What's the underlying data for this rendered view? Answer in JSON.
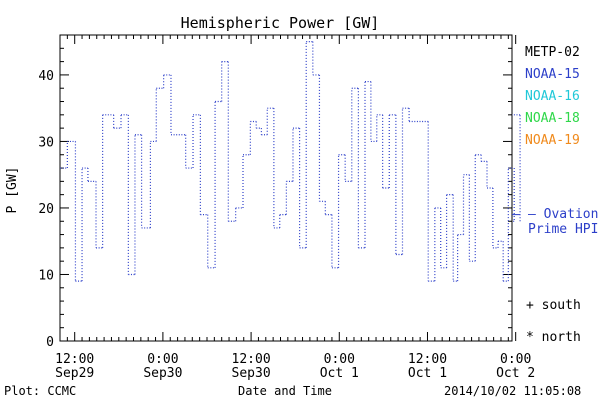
{
  "chart_data": {
    "type": "line",
    "title": "Hemispheric Power [GW]",
    "ylabel": "P [GW]",
    "xlabel": "Date and Time",
    "ylim": [
      0,
      46
    ],
    "xlim_hours": [
      -2,
      59.5
    ],
    "y_ticks": [
      0,
      10,
      20,
      30,
      40
    ],
    "x_ticks": [
      {
        "line1": "12:00",
        "line2": "Sep29"
      },
      {
        "line1": "0:00",
        "line2": "Sep30"
      },
      {
        "line1": "12:00",
        "line2": "Sep30"
      },
      {
        "line1": "0:00",
        "line2": "Oct 1"
      },
      {
        "line1": "12:00",
        "line2": "Oct 1"
      },
      {
        "line1": "0:00",
        "line2": "Oct 2"
      }
    ],
    "x_tick_hours": [
      0,
      12,
      24,
      36,
      48,
      60
    ],
    "grid": false,
    "legend": {
      "placement": "right",
      "entries": [
        {
          "label": "METP-02",
          "color": "#000000"
        },
        {
          "label": "NOAA-15",
          "color": "#2c3fc9"
        },
        {
          "label": "NOAA-16",
          "color": "#20c8d8"
        },
        {
          "label": "NOAA-18",
          "color": "#2fd84a"
        },
        {
          "label": "NOAA-19",
          "color": "#f08a1c"
        }
      ]
    },
    "series": [
      {
        "name": "NOAA-15",
        "color": "#2c3fc9",
        "style": "dotted-step",
        "points": [
          {
            "x": -2.0,
            "y": 26
          },
          {
            "x": -1.0,
            "y": 30
          },
          {
            "x": 0.1,
            "y": 9
          },
          {
            "x": 1.0,
            "y": 26
          },
          {
            "x": 1.8,
            "y": 24
          },
          {
            "x": 2.9,
            "y": 14
          },
          {
            "x": 3.8,
            "y": 34
          },
          {
            "x": 5.3,
            "y": 32
          },
          {
            "x": 6.3,
            "y": 34
          },
          {
            "x": 7.3,
            "y": 10
          },
          {
            "x": 8.2,
            "y": 31
          },
          {
            "x": 9.1,
            "y": 17
          },
          {
            "x": 10.3,
            "y": 30
          },
          {
            "x": 11.1,
            "y": 38
          },
          {
            "x": 12.1,
            "y": 40
          },
          {
            "x": 13.1,
            "y": 31
          },
          {
            "x": 15.1,
            "y": 26
          },
          {
            "x": 16.1,
            "y": 34
          },
          {
            "x": 17.1,
            "y": 19
          },
          {
            "x": 18.1,
            "y": 11
          },
          {
            "x": 19.1,
            "y": 36
          },
          {
            "x": 20.0,
            "y": 42
          },
          {
            "x": 20.9,
            "y": 18
          },
          {
            "x": 21.9,
            "y": 20
          },
          {
            "x": 22.9,
            "y": 28
          },
          {
            "x": 23.9,
            "y": 33
          },
          {
            "x": 24.7,
            "y": 32
          },
          {
            "x": 25.4,
            "y": 31
          },
          {
            "x": 26.2,
            "y": 35
          },
          {
            "x": 27.1,
            "y": 17
          },
          {
            "x": 27.9,
            "y": 19
          },
          {
            "x": 28.8,
            "y": 24
          },
          {
            "x": 29.7,
            "y": 32
          },
          {
            "x": 30.6,
            "y": 14
          },
          {
            "x": 31.5,
            "y": 45
          },
          {
            "x": 32.4,
            "y": 40
          },
          {
            "x": 33.3,
            "y": 21
          },
          {
            "x": 34.1,
            "y": 19
          },
          {
            "x": 35.0,
            "y": 11
          },
          {
            "x": 35.9,
            "y": 28
          },
          {
            "x": 36.8,
            "y": 24
          },
          {
            "x": 37.7,
            "y": 38
          },
          {
            "x": 38.6,
            "y": 14
          },
          {
            "x": 39.5,
            "y": 39
          },
          {
            "x": 40.3,
            "y": 30
          },
          {
            "x": 41.1,
            "y": 34
          },
          {
            "x": 41.9,
            "y": 23
          },
          {
            "x": 42.8,
            "y": 34
          },
          {
            "x": 43.7,
            "y": 13
          },
          {
            "x": 44.6,
            "y": 35
          },
          {
            "x": 45.5,
            "y": 33
          },
          {
            "x": 48.1,
            "y": 9
          },
          {
            "x": 49.0,
            "y": 20
          },
          {
            "x": 49.8,
            "y": 11
          },
          {
            "x": 50.6,
            "y": 22
          },
          {
            "x": 51.5,
            "y": 9
          },
          {
            "x": 52.1,
            "y": 16
          },
          {
            "x": 52.9,
            "y": 25
          },
          {
            "x": 53.7,
            "y": 12
          },
          {
            "x": 54.5,
            "y": 28
          },
          {
            "x": 55.3,
            "y": 27
          },
          {
            "x": 56.1,
            "y": 23
          },
          {
            "x": 56.9,
            "y": 14
          },
          {
            "x": 57.6,
            "y": 15
          },
          {
            "x": 58.3,
            "y": 9
          },
          {
            "x": 59.0,
            "y": 26
          },
          {
            "x": 59.8,
            "y": 18
          },
          {
            "x": 60.6,
            "y": 34
          }
        ]
      }
    ],
    "reference": {
      "label_line1": "— Ovation",
      "label_line2": "Prime HPI",
      "value": 19,
      "color": "#2c3fc9"
    }
  },
  "markers_legend": [
    {
      "symbol": "+",
      "label": "south"
    },
    {
      "symbol": "*",
      "label": "north"
    }
  ],
  "footer": {
    "left": "Plot: CCMC",
    "center": "Date and Time",
    "right": "2014/10/02 11:05:08"
  }
}
